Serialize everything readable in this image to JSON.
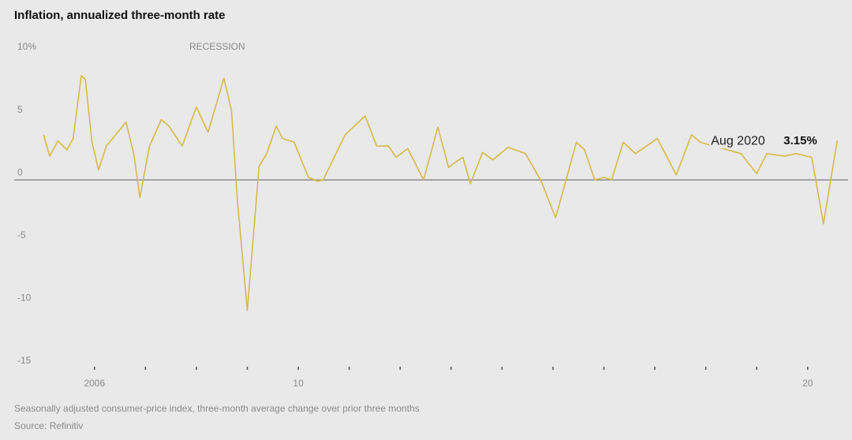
{
  "chart_data": {
    "type": "line",
    "title": "Inflation, annualized three-month rate",
    "annotation": "RECESSION",
    "note": "Seasonally adjusted consumer-price index, three-month average change over prior three months",
    "source": "Source: Refinitiv",
    "x": [
      2005.0,
      2005.12,
      2005.28,
      2005.46,
      2005.58,
      2005.74,
      2005.82,
      2005.95,
      2006.08,
      2006.23,
      2006.62,
      2006.77,
      2006.89,
      2007.08,
      2007.31,
      2007.46,
      2007.72,
      2008.0,
      2008.23,
      2008.54,
      2008.69,
      2008.8,
      2009.0,
      2009.23,
      2009.38,
      2009.57,
      2009.69,
      2009.92,
      2010.2,
      2010.38,
      2010.49,
      2010.92,
      2011.31,
      2011.54,
      2011.77,
      2011.92,
      2012.15,
      2012.46,
      2012.74,
      2012.95,
      2013.08,
      2013.23,
      2013.38,
      2013.62,
      2013.82,
      2014.12,
      2014.46,
      2014.77,
      2015.05,
      2015.23,
      2015.46,
      2015.62,
      2015.82,
      2016.0,
      2016.15,
      2016.38,
      2016.62,
      2017.05,
      2017.42,
      2017.72,
      2017.89,
      2018.69,
      2019.0,
      2019.2,
      2019.54,
      2019.77,
      2020.08,
      2020.31,
      2020.58
    ],
    "series": [
      {
        "name": "Inflation",
        "color": "#d6b94a",
        "values": [
          3.6,
          1.9,
          3.1,
          2.4,
          3.3,
          8.3,
          8.0,
          3.0,
          0.8,
          2.7,
          4.6,
          2.1,
          -1.4,
          2.7,
          4.8,
          4.3,
          2.7,
          5.8,
          3.8,
          8.1,
          5.5,
          -1.4,
          -10.4,
          1.1,
          2.1,
          4.3,
          3.3,
          3.0,
          0.2,
          -0.1,
          0,
          3.6,
          5.1,
          2.7,
          2.7,
          1.8,
          2.5,
          0,
          4.2,
          1.0,
          1.4,
          1.8,
          -0.3,
          2.2,
          1.6,
          2.6,
          2.1,
          -0.1,
          -3.0,
          -0.4,
          3.0,
          2.4,
          0,
          0.2,
          0,
          3.0,
          2.1,
          3.3,
          0.4,
          3.6,
          3.0,
          2.1,
          0.5,
          2.1,
          1.9,
          2.1,
          1.8,
          -3.5,
          3.15
        ],
        "value_labels": [
          null,
          null,
          null,
          null,
          null,
          null,
          null,
          null,
          null,
          null,
          null,
          null,
          null,
          null,
          null,
          null,
          null,
          null,
          null,
          null,
          null,
          null,
          null,
          null,
          null,
          null,
          null,
          null,
          null,
          null,
          null,
          null,
          null,
          null,
          null,
          null,
          null,
          null,
          null,
          null,
          null,
          null,
          null,
          null,
          null,
          null,
          null,
          null,
          null,
          null,
          null,
          null,
          null,
          null,
          null,
          null,
          null,
          null,
          null,
          null,
          null,
          null,
          null,
          null,
          null,
          null,
          null,
          null,
          "3.15%"
        ],
        "point_label": "Aug 2020"
      }
    ],
    "xlim": [
      2004.95,
      2020.7
    ],
    "xticks": [
      2006,
      {
        "value": 2007,
        "label": null
      },
      {
        "value": 2008,
        "label": null
      },
      {
        "value": 2009,
        "label": null
      },
      {
        "value": 2010,
        "label": "10"
      },
      {
        "value": 2011,
        "label": null
      },
      {
        "value": 2012,
        "label": null
      },
      {
        "value": 2013,
        "label": null
      },
      {
        "value": 2014,
        "label": null
      },
      {
        "value": 2015,
        "label": null
      },
      {
        "value": 2016,
        "label": null
      },
      {
        "value": 2017,
        "label": null
      },
      {
        "value": 2018,
        "label": null
      },
      {
        "value": 2019,
        "label": null
      },
      {
        "value": 2020,
        "label": "20"
      }
    ],
    "ylim": [
      -15,
      10
    ],
    "yticks": [
      {
        "value": 10,
        "label": "10%"
      },
      5,
      0,
      -5,
      -10,
      -15
    ],
    "zero_line": true
  }
}
